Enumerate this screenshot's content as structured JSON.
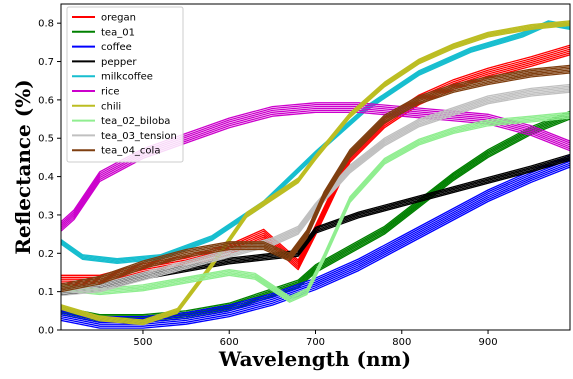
{
  "chart_data": {
    "type": "line",
    "xlabel": "Wavelength (nm)",
    "ylabel": "Reflectance (%)",
    "xlim": [
      405,
      995
    ],
    "ylim": [
      0,
      0.85
    ],
    "xticks": [
      500,
      600,
      700,
      800,
      900
    ],
    "yticks": [
      0.0,
      0.1,
      0.2,
      0.3,
      0.4,
      0.5,
      0.6,
      0.7,
      0.8
    ],
    "grid": false,
    "legend_position": "top-left",
    "series": [
      {
        "name": "oregan",
        "color": "#ff0000",
        "band": 0.025,
        "count": 6,
        "x": [
          405,
          450,
          500,
          550,
          600,
          620,
          640,
          660,
          680,
          700,
          740,
          780,
          820,
          860,
          900,
          950,
          995
        ],
        "y": [
          0.13,
          0.13,
          0.16,
          0.18,
          0.21,
          0.23,
          0.25,
          0.21,
          0.17,
          0.26,
          0.45,
          0.54,
          0.6,
          0.64,
          0.67,
          0.7,
          0.73
        ]
      },
      {
        "name": "tea_01",
        "color": "#008000",
        "band": 0.02,
        "count": 6,
        "x": [
          405,
          450,
          500,
          550,
          600,
          640,
          680,
          700,
          740,
          780,
          820,
          860,
          900,
          950,
          995
        ],
        "y": [
          0.05,
          0.03,
          0.03,
          0.04,
          0.06,
          0.09,
          0.12,
          0.16,
          0.21,
          0.26,
          0.33,
          0.4,
          0.46,
          0.52,
          0.56
        ]
      },
      {
        "name": "coffee",
        "color": "#0000ff",
        "band": 0.03,
        "count": 7,
        "x": [
          405,
          450,
          500,
          550,
          600,
          650,
          700,
          750,
          800,
          850,
          900,
          950,
          995
        ],
        "y": [
          0.04,
          0.02,
          0.02,
          0.03,
          0.05,
          0.08,
          0.12,
          0.17,
          0.23,
          0.29,
          0.35,
          0.4,
          0.44
        ]
      },
      {
        "name": "pepper",
        "color": "#000000",
        "band": 0.015,
        "count": 5,
        "x": [
          405,
          450,
          500,
          550,
          600,
          640,
          680,
          700,
          750,
          800,
          850,
          900,
          950,
          995
        ],
        "y": [
          0.1,
          0.11,
          0.14,
          0.16,
          0.18,
          0.19,
          0.2,
          0.26,
          0.3,
          0.33,
          0.36,
          0.39,
          0.42,
          0.45
        ]
      },
      {
        "name": "milkcoffee",
        "color": "#17becf",
        "band": 0.012,
        "count": 5,
        "x": [
          405,
          430,
          470,
          520,
          580,
          640,
          700,
          760,
          820,
          880,
          940,
          970,
          995
        ],
        "y": [
          0.23,
          0.19,
          0.18,
          0.19,
          0.24,
          0.33,
          0.46,
          0.58,
          0.67,
          0.73,
          0.77,
          0.8,
          0.79
        ]
      },
      {
        "name": "rice",
        "color": "#cc00cc",
        "band": 0.025,
        "count": 6,
        "x": [
          405,
          420,
          450,
          500,
          550,
          600,
          650,
          700,
          750,
          800,
          850,
          900,
          950,
          995
        ],
        "y": [
          0.27,
          0.3,
          0.4,
          0.46,
          0.5,
          0.54,
          0.57,
          0.58,
          0.58,
          0.57,
          0.56,
          0.55,
          0.52,
          0.48
        ]
      },
      {
        "name": "chili",
        "color": "#bcbd22",
        "band": 0.012,
        "count": 5,
        "x": [
          405,
          450,
          500,
          540,
          580,
          620,
          660,
          680,
          700,
          740,
          780,
          820,
          860,
          900,
          950,
          995
        ],
        "y": [
          0.06,
          0.03,
          0.02,
          0.05,
          0.17,
          0.3,
          0.36,
          0.39,
          0.45,
          0.56,
          0.64,
          0.7,
          0.74,
          0.77,
          0.79,
          0.8
        ]
      },
      {
        "name": "tea_02_biloba",
        "color": "#90ee90",
        "band": 0.015,
        "count": 5,
        "x": [
          405,
          450,
          500,
          550,
          600,
          630,
          650,
          670,
          690,
          710,
          740,
          780,
          820,
          860,
          900,
          950,
          995
        ],
        "y": [
          0.11,
          0.1,
          0.11,
          0.13,
          0.15,
          0.14,
          0.11,
          0.08,
          0.1,
          0.19,
          0.34,
          0.44,
          0.49,
          0.52,
          0.54,
          0.55,
          0.56
        ]
      },
      {
        "name": "tea_03_tension",
        "color": "#c0c0c0",
        "band": 0.02,
        "count": 6,
        "x": [
          405,
          450,
          500,
          550,
          600,
          650,
          680,
          700,
          740,
          780,
          820,
          860,
          900,
          950,
          995
        ],
        "y": [
          0.1,
          0.11,
          0.14,
          0.17,
          0.2,
          0.23,
          0.26,
          0.32,
          0.42,
          0.49,
          0.54,
          0.57,
          0.6,
          0.62,
          0.63
        ]
      },
      {
        "name": "tea_04_cola",
        "color": "#7f3f10",
        "band": 0.02,
        "count": 6,
        "x": [
          405,
          450,
          500,
          550,
          600,
          640,
          670,
          690,
          710,
          740,
          780,
          820,
          860,
          900,
          950,
          995
        ],
        "y": [
          0.11,
          0.13,
          0.17,
          0.2,
          0.22,
          0.22,
          0.19,
          0.25,
          0.35,
          0.46,
          0.55,
          0.6,
          0.63,
          0.65,
          0.67,
          0.68
        ]
      }
    ]
  }
}
